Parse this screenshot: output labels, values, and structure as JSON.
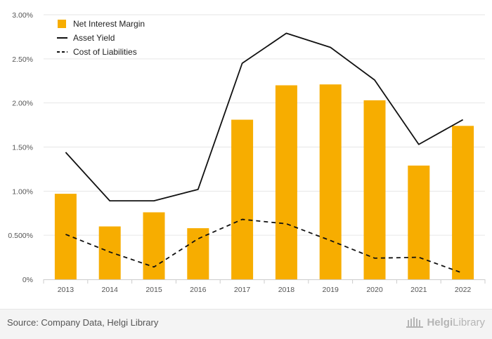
{
  "chart_data": {
    "type": "bar+line",
    "categories": [
      "2013",
      "2014",
      "2015",
      "2016",
      "2017",
      "2018",
      "2019",
      "2020",
      "2021",
      "2022"
    ],
    "series": [
      {
        "name": "Net Interest Margin",
        "kind": "bar",
        "color": "#f7ad00",
        "values": [
          0.97,
          0.6,
          0.76,
          0.58,
          1.81,
          2.2,
          2.21,
          2.03,
          1.29,
          1.74
        ]
      },
      {
        "name": "Asset Yield",
        "kind": "line",
        "style": "solid",
        "color": "#111111",
        "values": [
          1.44,
          0.89,
          0.89,
          1.02,
          2.45,
          2.79,
          2.63,
          2.26,
          1.53,
          1.81
        ]
      },
      {
        "name": "Cost of Liabilities",
        "kind": "line",
        "style": "dashed",
        "color": "#111111",
        "values": [
          0.51,
          0.31,
          0.14,
          0.46,
          0.68,
          0.63,
          0.44,
          0.24,
          0.25,
          0.07
        ]
      }
    ],
    "yticks": [
      {
        "value": 0,
        "label": "0%"
      },
      {
        "value": 0.5,
        "label": "0.500%"
      },
      {
        "value": 1.0,
        "label": "1.00%"
      },
      {
        "value": 1.5,
        "label": "1.50%"
      },
      {
        "value": 2.0,
        "label": "2.00%"
      },
      {
        "value": 2.5,
        "label": "2.50%"
      },
      {
        "value": 3.0,
        "label": "3.00%"
      }
    ],
    "ylim": [
      0,
      3.0
    ],
    "grid": true,
    "legend_position": "top-left"
  },
  "footer": {
    "source": "Source: Company Data, Helgi Library",
    "logo_bold": "Helgi",
    "logo_rest": "Library"
  }
}
